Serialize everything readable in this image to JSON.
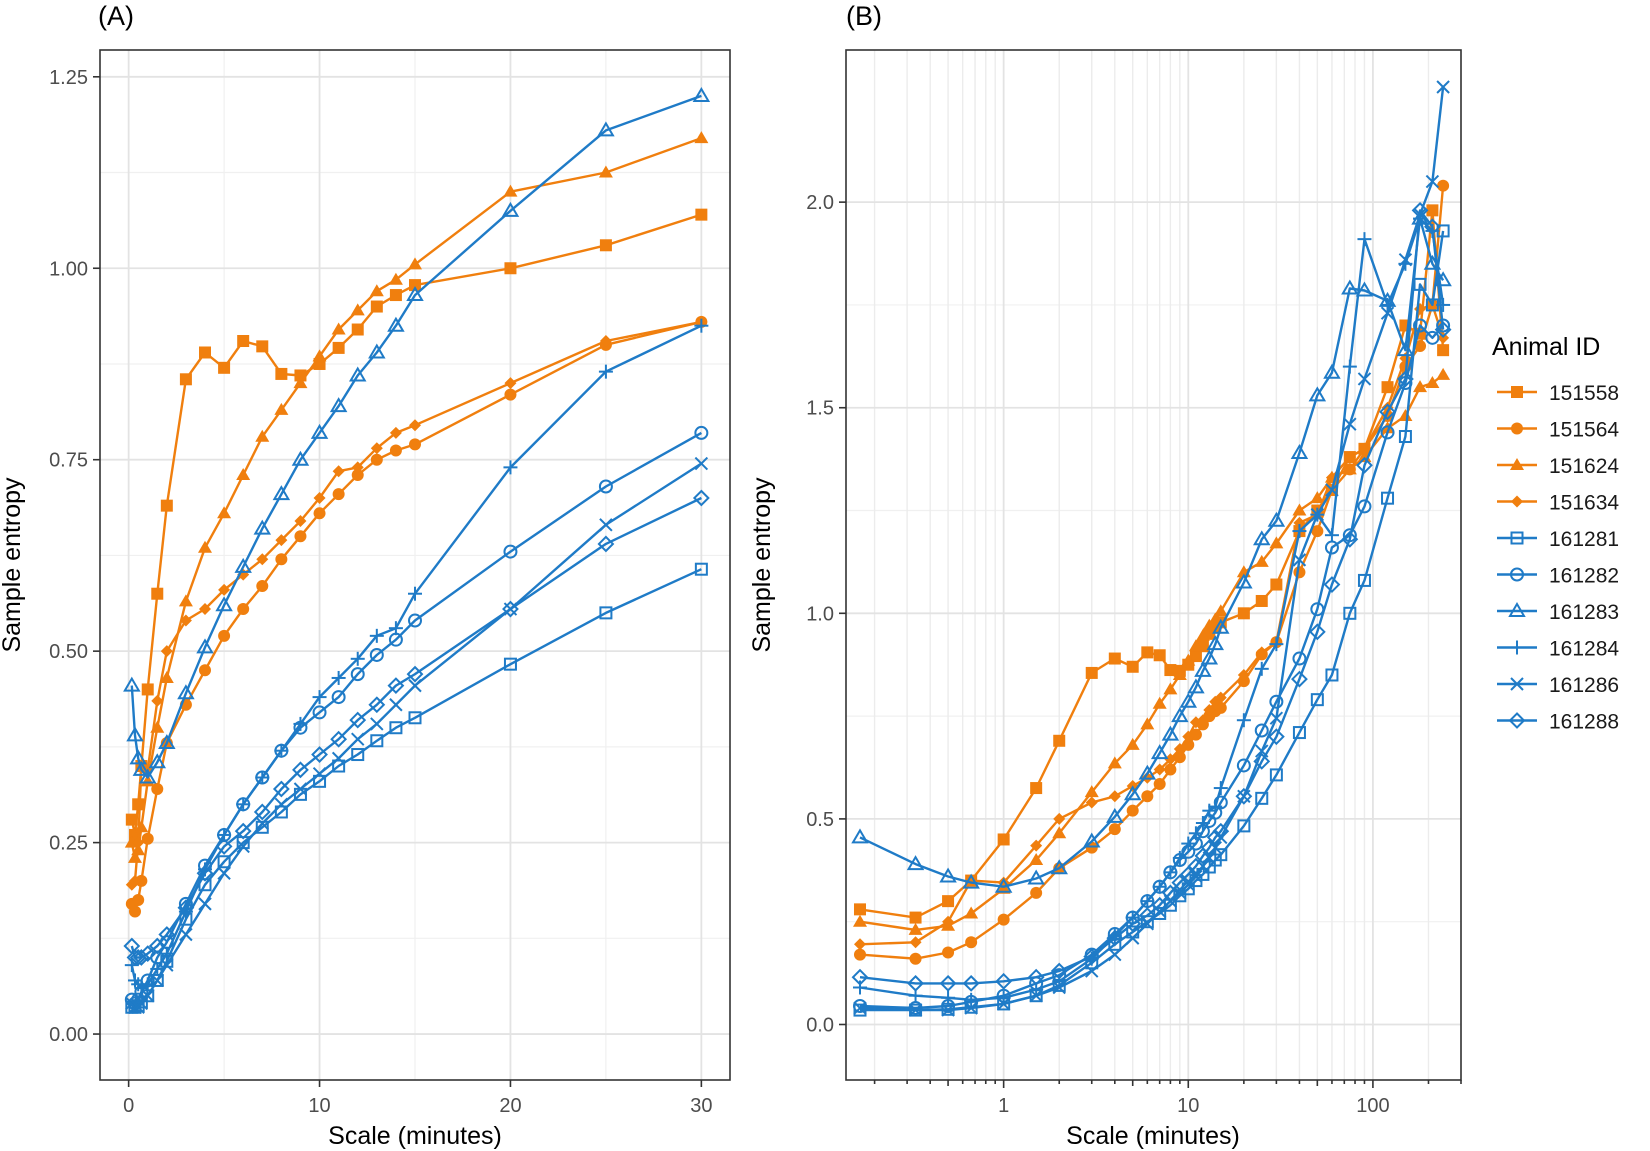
{
  "legend": {
    "title": "Animal ID",
    "items": [
      {
        "id": "151558",
        "marker": "square-filled",
        "color": "#f07f0e"
      },
      {
        "id": "151564",
        "marker": "circle-filled",
        "color": "#f07f0e"
      },
      {
        "id": "151624",
        "marker": "triangle-filled",
        "color": "#f07f0e"
      },
      {
        "id": "151634",
        "marker": "diamond-filled",
        "color": "#f07f0e"
      },
      {
        "id": "161281",
        "marker": "square-open",
        "color": "#1f7bc7"
      },
      {
        "id": "161282",
        "marker": "circle-open",
        "color": "#1f7bc7"
      },
      {
        "id": "161283",
        "marker": "triangle-open",
        "color": "#1f7bc7"
      },
      {
        "id": "161284",
        "marker": "plus",
        "color": "#1f7bc7"
      },
      {
        "id": "161286",
        "marker": "cross",
        "color": "#1f7bc7"
      },
      {
        "id": "161288",
        "marker": "diamond-open",
        "color": "#1f7bc7"
      }
    ]
  },
  "chart_data": [
    {
      "panel": "(A)",
      "type": "line",
      "xlabel": "Scale (minutes)",
      "ylabel": "Sample entropy",
      "xscale": "linear",
      "xlim": [
        -1.5,
        31.5
      ],
      "ylim": [
        -0.06,
        1.285
      ],
      "xticks": [
        0,
        10,
        20,
        30
      ],
      "xtick_labels": [
        "0",
        "10",
        "20",
        "30"
      ],
      "yticks": [
        0,
        0.25,
        0.5,
        0.75,
        1.0,
        1.25
      ],
      "ytick_labels": [
        "0.00",
        "0.25",
        "0.50",
        "0.75",
        "1.00",
        "1.25"
      ]
    },
    {
      "panel": "(B)",
      "type": "line",
      "xlabel": "Scale (minutes)",
      "ylabel": "Sample entropy",
      "xscale": "log10",
      "xlim": [
        0.14,
        300
      ],
      "ylim": [
        -0.135,
        2.37
      ],
      "xticks": [
        1,
        10,
        100
      ],
      "xtick_labels": [
        "1",
        "10",
        "100"
      ],
      "yticks": [
        0,
        0.5,
        1.0,
        1.5,
        2.0
      ],
      "ytick_labels": [
        "0.0",
        "0.5",
        "1.0",
        "1.5",
        "2.0"
      ]
    }
  ],
  "series_data": {
    "x": [
      0.1667,
      0.3333,
      0.5,
      0.6667,
      1,
      1.5,
      2,
      3,
      4,
      5,
      6,
      7,
      8,
      9,
      10,
      11,
      12,
      13,
      14,
      15,
      20,
      25,
      30
    ],
    "xB": [
      0.1667,
      0.3333,
      0.5,
      0.6667,
      1,
      1.5,
      2,
      3,
      4,
      5,
      6,
      7,
      8,
      9,
      10,
      11,
      12,
      13,
      14,
      15,
      20,
      25,
      30,
      40,
      50,
      60,
      75,
      90,
      120,
      150,
      180,
      210,
      240
    ],
    "series": [
      {
        "name": "151558",
        "values": [
          0.28,
          0.26,
          0.3,
          0.35,
          0.45,
          0.575,
          0.69,
          0.855,
          0.89,
          0.87,
          0.905,
          0.898,
          0.862,
          0.86,
          0.875,
          0.896,
          0.92,
          0.95,
          0.965,
          0.978,
          1.0,
          1.03,
          1.07,
          1.2,
          1.25,
          1.3,
          1.38,
          1.4,
          1.55,
          1.7,
          1.68,
          1.98,
          1.64
        ]
      },
      {
        "name": "151564",
        "values": [
          0.17,
          0.16,
          0.175,
          0.2,
          0.255,
          0.32,
          0.38,
          0.43,
          0.475,
          0.52,
          0.555,
          0.585,
          0.62,
          0.65,
          0.68,
          0.705,
          0.73,
          0.75,
          0.762,
          0.77,
          0.835,
          0.9,
          0.93,
          1.1,
          1.2,
          1.3,
          1.35,
          1.4,
          1.48,
          1.6,
          1.65,
          1.75,
          2.04
        ]
      },
      {
        "name": "151624",
        "values": [
          0.25,
          0.23,
          0.24,
          0.27,
          0.33,
          0.4,
          0.465,
          0.565,
          0.635,
          0.68,
          0.73,
          0.78,
          0.815,
          0.85,
          0.885,
          0.92,
          0.945,
          0.97,
          0.985,
          1.005,
          1.1,
          1.125,
          1.17,
          1.25,
          1.28,
          1.33,
          1.35,
          1.38,
          1.45,
          1.48,
          1.55,
          1.56,
          1.58
        ]
      },
      {
        "name": "151634",
        "values": [
          0.195,
          0.2,
          0.25,
          0.35,
          0.345,
          0.435,
          0.5,
          0.54,
          0.555,
          0.58,
          0.6,
          0.62,
          0.645,
          0.67,
          0.7,
          0.735,
          0.74,
          0.765,
          0.785,
          0.795,
          0.85,
          0.905,
          0.93,
          1.22,
          1.24,
          1.33,
          1.38,
          1.4,
          1.5,
          1.62,
          1.74,
          1.75,
          1.67
        ]
      },
      {
        "name": "161281",
        "values": [
          0.035,
          0.035,
          0.037,
          0.042,
          0.05,
          0.07,
          0.095,
          0.15,
          0.195,
          0.225,
          0.25,
          0.27,
          0.29,
          0.313,
          0.33,
          0.35,
          0.365,
          0.383,
          0.4,
          0.413,
          0.483,
          0.55,
          0.607,
          0.71,
          0.79,
          0.85,
          1.0,
          1.08,
          1.28,
          1.43,
          1.8,
          1.75,
          1.93
        ]
      },
      {
        "name": "161282",
        "values": [
          0.045,
          0.04,
          0.045,
          0.055,
          0.07,
          0.1,
          0.12,
          0.17,
          0.22,
          0.26,
          0.3,
          0.335,
          0.37,
          0.4,
          0.42,
          0.44,
          0.47,
          0.495,
          0.515,
          0.54,
          0.63,
          0.715,
          0.785,
          0.89,
          1.01,
          1.16,
          1.19,
          1.26,
          1.44,
          1.56,
          1.7,
          1.67,
          1.7
        ]
      },
      {
        "name": "161283",
        "values": [
          0.455,
          0.39,
          0.36,
          0.345,
          0.335,
          0.355,
          0.38,
          0.445,
          0.505,
          0.56,
          0.61,
          0.66,
          0.705,
          0.75,
          0.785,
          0.82,
          0.86,
          0.89,
          0.925,
          0.965,
          1.075,
          1.18,
          1.225,
          1.39,
          1.53,
          1.585,
          1.79,
          1.785,
          1.76,
          1.64,
          1.96,
          1.85,
          1.81
        ]
      },
      {
        "name": "161284",
        "values": [
          0.09,
          0.07,
          0.065,
          0.06,
          0.065,
          0.085,
          0.105,
          0.16,
          0.215,
          0.26,
          0.3,
          0.335,
          0.37,
          0.405,
          0.44,
          0.465,
          0.49,
          0.52,
          0.53,
          0.575,
          0.74,
          0.865,
          0.925,
          1.2,
          1.24,
          1.19,
          1.6,
          1.91,
          1.75,
          1.85,
          1.96,
          1.93,
          1.75
        ]
      },
      {
        "name": "161286",
        "values": [
          0.04,
          0.035,
          0.035,
          0.04,
          0.05,
          0.07,
          0.09,
          0.13,
          0.17,
          0.21,
          0.245,
          0.275,
          0.3,
          0.32,
          0.34,
          0.36,
          0.385,
          0.405,
          0.43,
          0.455,
          0.555,
          0.665,
          0.745,
          1.13,
          1.24,
          1.3,
          1.46,
          1.57,
          1.73,
          1.86,
          1.97,
          2.05,
          2.28
        ]
      },
      {
        "name": "161288",
        "values": [
          0.115,
          0.1,
          0.1,
          0.1,
          0.105,
          0.115,
          0.13,
          0.165,
          0.21,
          0.245,
          0.265,
          0.29,
          0.32,
          0.345,
          0.365,
          0.385,
          0.41,
          0.43,
          0.455,
          0.47,
          0.555,
          0.64,
          0.7,
          0.84,
          0.955,
          1.07,
          1.18,
          1.36,
          1.49,
          1.57,
          1.98,
          1.94,
          1.69
        ]
      }
    ]
  }
}
